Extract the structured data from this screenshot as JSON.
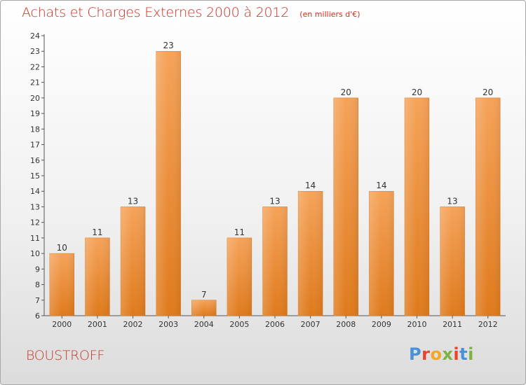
{
  "chart_data": {
    "type": "bar",
    "title": "Achats et Charges Externes 2000 à 2012",
    "unit_note": "(en milliers d'€)",
    "categories": [
      "2000",
      "2001",
      "2002",
      "2003",
      "2004",
      "2005",
      "2006",
      "2007",
      "2008",
      "2009",
      "2010",
      "2011",
      "2012"
    ],
    "values": [
      10,
      11,
      13,
      23,
      7,
      11,
      13,
      14,
      20,
      14,
      20,
      13,
      20
    ],
    "ylim": [
      6,
      24
    ],
    "yticks": [
      6,
      7,
      8,
      9,
      10,
      11,
      12,
      13,
      14,
      15,
      16,
      17,
      18,
      19,
      20,
      21,
      22,
      23,
      24
    ],
    "xlabel": "",
    "ylabel": "",
    "grid": false,
    "bar_color": "#f0923c"
  },
  "place": "BOUSTROFF",
  "brand": {
    "name": "Proxiti",
    "colors": [
      "#4a90d9",
      "#e8442c",
      "#f5a623",
      "#7cb342",
      "#e8442c",
      "#4a90d9",
      "#7cb342"
    ]
  }
}
